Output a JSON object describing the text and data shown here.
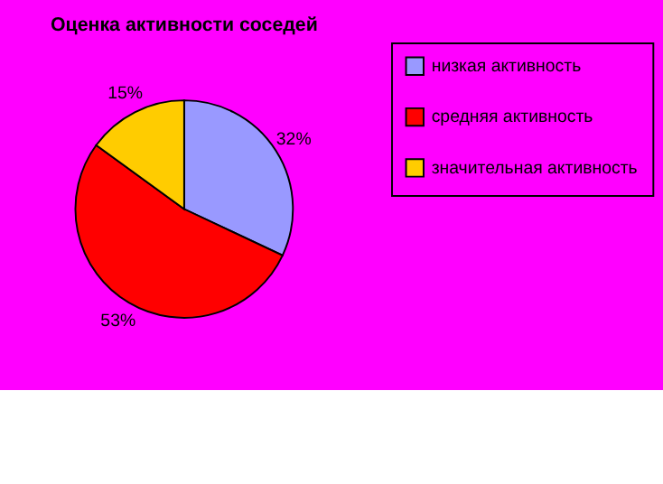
{
  "chart_data": {
    "type": "pie",
    "title": "Оценка активности соседей",
    "categories": [
      "низкая активность",
      "средняя активность",
      "значительная активность"
    ],
    "values": [
      32,
      53,
      15
    ],
    "colors": [
      "#9999ff",
      "#ff0000",
      "#ffcc00"
    ],
    "value_labels": [
      "32%",
      "53%",
      "15%"
    ],
    "legend": "right"
  }
}
